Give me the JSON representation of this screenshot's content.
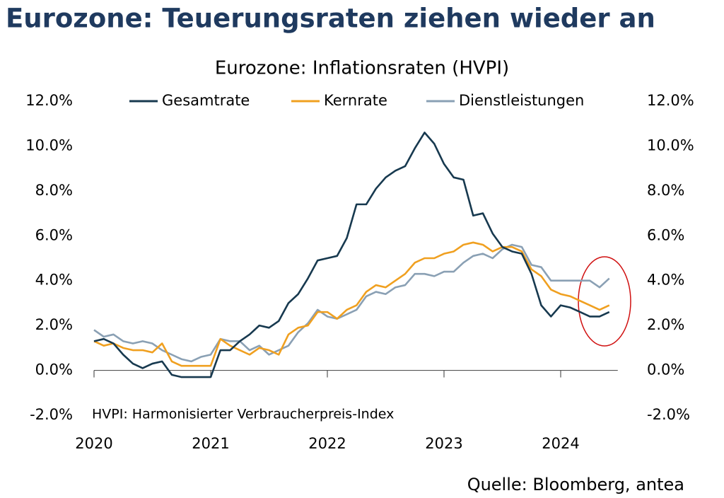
{
  "chart_data": {
    "type": "line",
    "title": "Eurozone: Teuerungsraten ziehen wieder an",
    "subtitle": "Eurozone: Inflationsraten (HVPI)",
    "note": "HVPI: Harmonisierter Verbraucherpreis-Index",
    "source": "Quelle: Bloomberg, antea",
    "categories": [
      "2020",
      null,
      null,
      null,
      null,
      null,
      null,
      null,
      null,
      null,
      null,
      null,
      "2021",
      null,
      null,
      null,
      null,
      null,
      null,
      null,
      null,
      null,
      null,
      null,
      "2022",
      null,
      null,
      null,
      null,
      null,
      null,
      null,
      null,
      null,
      null,
      null,
      "2023",
      null,
      null,
      null,
      null,
      null,
      null,
      null,
      null,
      null,
      null,
      null,
      "2024",
      null,
      null,
      null,
      null,
      null
    ],
    "series": [
      {
        "name": "Gesamtrate",
        "color": "#17394f",
        "values": [
          1.3,
          1.4,
          1.2,
          0.7,
          0.3,
          0.1,
          0.3,
          0.4,
          -0.2,
          -0.3,
          -0.3,
          -0.3,
          -0.3,
          0.9,
          0.9,
          1.3,
          1.6,
          2.0,
          1.9,
          2.2,
          3.0,
          3.4,
          4.1,
          4.9,
          5.0,
          5.1,
          5.9,
          7.4,
          7.4,
          8.1,
          8.6,
          8.9,
          9.1,
          9.9,
          10.6,
          10.1,
          9.2,
          8.6,
          8.5,
          6.9,
          7.0,
          6.1,
          5.5,
          5.3,
          5.2,
          4.3,
          2.9,
          2.4,
          2.9,
          2.8,
          2.6,
          2.4,
          2.4,
          2.6
        ]
      },
      {
        "name": "Kernrate",
        "color": "#f0a020",
        "values": [
          1.3,
          1.1,
          1.2,
          1.0,
          0.9,
          0.9,
          0.8,
          1.2,
          0.4,
          0.2,
          0.2,
          0.2,
          0.2,
          1.4,
          1.1,
          0.9,
          0.7,
          1.0,
          0.9,
          0.7,
          1.6,
          1.9,
          2.0,
          2.6,
          2.6,
          2.3,
          2.7,
          2.9,
          3.5,
          3.8,
          3.7,
          4.0,
          4.3,
          4.8,
          5.0,
          5.0,
          5.2,
          5.3,
          5.6,
          5.7,
          5.6,
          5.3,
          5.5,
          5.5,
          5.3,
          4.5,
          4.2,
          3.6,
          3.4,
          3.3,
          3.1,
          2.9,
          2.7,
          2.9
        ]
      },
      {
        "name": "Dienstleistungen",
        "color": "#8aa0b4",
        "values": [
          1.8,
          1.5,
          1.6,
          1.3,
          1.2,
          1.3,
          1.2,
          0.9,
          0.7,
          0.5,
          0.4,
          0.6,
          0.7,
          1.4,
          1.3,
          1.3,
          0.9,
          1.1,
          0.7,
          0.9,
          1.1,
          1.7,
          2.1,
          2.7,
          2.4,
          2.3,
          2.5,
          2.7,
          3.3,
          3.5,
          3.4,
          3.7,
          3.8,
          4.3,
          4.3,
          4.2,
          4.4,
          4.4,
          4.8,
          5.1,
          5.2,
          5.0,
          5.4,
          5.6,
          5.5,
          4.7,
          4.6,
          4.0,
          4.0,
          4.0,
          4.0,
          4.0,
          3.7,
          4.1
        ]
      }
    ],
    "ylim": [
      -2,
      12
    ],
    "yticks": [
      {
        "value": -2,
        "label": "-2.0%"
      },
      {
        "value": 0,
        "label": "0.0%"
      },
      {
        "value": 2,
        "label": "2.0%"
      },
      {
        "value": 4,
        "label": "4.0%"
      },
      {
        "value": 6,
        "label": "6.0%"
      },
      {
        "value": 8,
        "label": "8.0%"
      },
      {
        "value": 10,
        "label": "10.0%"
      },
      {
        "value": 12,
        "label": "12.0%"
      }
    ],
    "y2lim": [
      -2,
      12
    ],
    "y2ticks": [
      {
        "value": -2,
        "label": "-2.0%"
      },
      {
        "value": 0,
        "label": "0.0%"
      },
      {
        "value": 2,
        "label": "2.0%"
      },
      {
        "value": 4,
        "label": "4.0%"
      },
      {
        "value": 6,
        "label": "6.0%"
      },
      {
        "value": 8,
        "label": "8.0%"
      },
      {
        "value": 10,
        "label": "10.0%"
      },
      {
        "value": 12,
        "label": "12.0%"
      }
    ],
    "legend": "top"
  }
}
